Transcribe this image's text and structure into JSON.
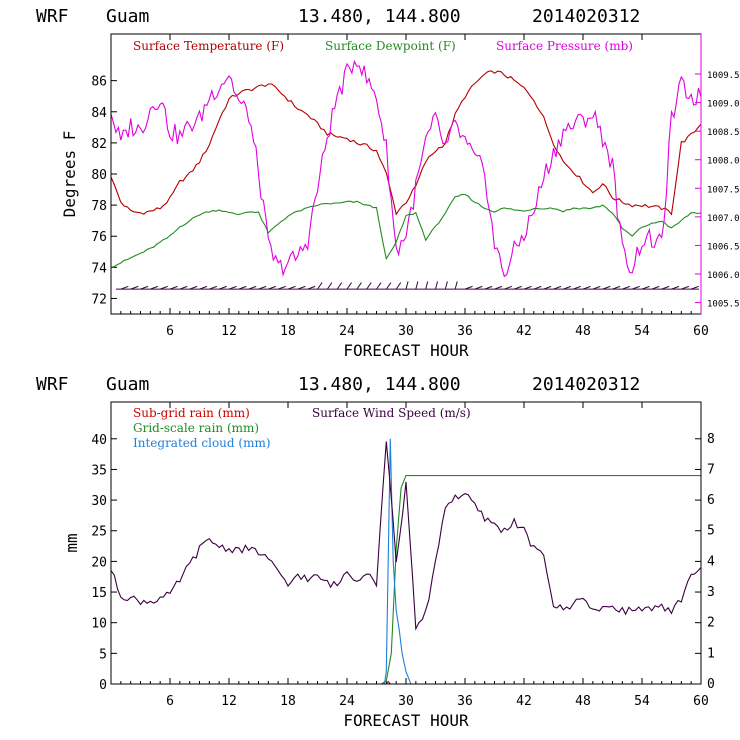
{
  "chart_data": [
    {
      "type": "line",
      "title": "WRF  Guam        13.480, 144.800  2014020312",
      "title_parts": {
        "model": "WRF",
        "location": "Guam",
        "coords": "13.480, 144.800",
        "run": "2014020312"
      },
      "xlabel": "FORECAST HOUR",
      "ylabel": "Degrees F",
      "xlim": [
        0,
        60
      ],
      "ylim": [
        71,
        89
      ],
      "x_ticks": [
        6,
        12,
        18,
        24,
        30,
        36,
        42,
        48,
        54,
        60
      ],
      "y_ticks": [
        72,
        74,
        76,
        78,
        80,
        82,
        84,
        86
      ],
      "y2_ticks": [
        "1005.5",
        "1006.0",
        "1006.5",
        "1007.0",
        "1007.5",
        "1008.0",
        "1008.5",
        "1009.0",
        "1009.5"
      ],
      "y2lim": [
        1005.3,
        1010.2
      ],
      "colors": {
        "temperature": "#b30000",
        "dewpoint": "#228b22",
        "pressure": "#e000e0",
        "wind": "#3a0040"
      },
      "series": [
        {
          "name": "Surface Temperature (F)",
          "color": "#b30000",
          "axis": "left",
          "x": [
            0,
            1,
            2,
            3,
            4,
            5,
            6,
            7,
            8,
            9,
            10,
            11,
            12,
            13,
            14,
            15,
            16,
            17,
            18,
            19,
            20,
            21,
            22,
            23,
            24,
            25,
            26,
            27,
            28,
            29,
            30,
            31,
            32,
            33,
            34,
            35,
            36,
            37,
            38,
            39,
            40,
            41,
            42,
            43,
            44,
            45,
            46,
            47,
            48,
            49,
            50,
            51,
            52,
            53,
            54,
            55,
            56,
            57,
            58,
            59,
            60
          ],
          "values": [
            79.8,
            78.2,
            77.6,
            77.5,
            77.6,
            77.8,
            78.4,
            79.5,
            80.0,
            80.8,
            81.9,
            83.5,
            84.8,
            85.2,
            85.4,
            85.6,
            85.8,
            85.4,
            84.8,
            84.2,
            83.8,
            83.2,
            82.6,
            82.4,
            82.3,
            82.0,
            81.8,
            81.5,
            80.0,
            77.5,
            78.2,
            79.2,
            80.8,
            81.5,
            82.0,
            83.8,
            85.0,
            85.8,
            86.4,
            86.6,
            86.4,
            86.0,
            85.5,
            84.8,
            83.6,
            82.0,
            80.8,
            80.2,
            79.5,
            78.8,
            79.4,
            78.5,
            78.2,
            78.0,
            78.0,
            77.9,
            77.8,
            77.5,
            82.0,
            82.5,
            83.2
          ]
        },
        {
          "name": "Surface Dewpoint (F)",
          "color": "#228b22",
          "axis": "left",
          "x": [
            0,
            1,
            2,
            3,
            4,
            5,
            6,
            7,
            8,
            9,
            10,
            11,
            12,
            13,
            14,
            15,
            16,
            17,
            18,
            19,
            20,
            21,
            22,
            23,
            24,
            25,
            26,
            27,
            28,
            29,
            30,
            31,
            32,
            33,
            34,
            35,
            36,
            37,
            38,
            39,
            40,
            41,
            42,
            43,
            44,
            45,
            46,
            47,
            48,
            49,
            50,
            51,
            52,
            53,
            54,
            55,
            56,
            57,
            58,
            59,
            60
          ],
          "values": [
            74.0,
            74.3,
            74.6,
            74.9,
            75.2,
            75.6,
            76.0,
            76.6,
            77.0,
            77.4,
            77.6,
            77.7,
            77.5,
            77.4,
            77.6,
            77.5,
            76.2,
            76.8,
            77.3,
            77.6,
            77.8,
            78.0,
            78.1,
            78.1,
            78.2,
            78.2,
            78.0,
            77.8,
            74.5,
            75.6,
            77.3,
            77.5,
            75.8,
            76.6,
            77.5,
            78.5,
            78.7,
            78.2,
            77.8,
            77.6,
            77.8,
            77.7,
            77.6,
            77.8,
            77.8,
            77.8,
            77.6,
            77.8,
            77.8,
            77.8,
            78.0,
            77.5,
            76.5,
            76.0,
            76.6,
            76.8,
            77.0,
            76.5,
            77.0,
            77.5,
            77.5
          ]
        },
        {
          "name": "Surface Pressure (mb)",
          "color": "#e000e0",
          "axis": "right",
          "x": [
            0,
            1,
            2,
            3,
            4,
            5,
            6,
            7,
            8,
            9,
            10,
            11,
            12,
            13,
            14,
            15,
            16,
            17,
            18,
            19,
            20,
            21,
            22,
            23,
            24,
            25,
            26,
            27,
            28,
            29,
            30,
            31,
            32,
            33,
            34,
            35,
            36,
            37,
            38,
            39,
            40,
            41,
            42,
            43,
            44,
            45,
            46,
            47,
            48,
            49,
            50,
            51,
            52,
            53,
            54,
            55,
            56,
            57,
            58,
            59,
            60
          ],
          "values": [
            1008.8,
            1008.3,
            1008.6,
            1008.5,
            1008.9,
            1009.1,
            1008.5,
            1008.4,
            1008.6,
            1008.7,
            1009.1,
            1009.3,
            1009.5,
            1009.0,
            1008.8,
            1007.8,
            1006.5,
            1006.1,
            1006.2,
            1006.3,
            1006.6,
            1007.5,
            1008.4,
            1009.1,
            1009.5,
            1009.8,
            1009.4,
            1009.1,
            1008.2,
            1006.4,
            1006.7,
            1007.5,
            1008.3,
            1008.7,
            1008.2,
            1008.6,
            1008.3,
            1008.0,
            1007.8,
            1006.5,
            1006.0,
            1006.4,
            1006.7,
            1007.1,
            1007.7,
            1008.1,
            1008.5,
            1008.6,
            1008.7,
            1008.8,
            1008.4,
            1007.9,
            1006.4,
            1006.1,
            1006.6,
            1006.6,
            1006.5,
            1008.7,
            1009.3,
            1009.1,
            1009.1
          ]
        },
        {
          "name": "Surface Wind (barbs)",
          "color": "#3a0040",
          "axis": "left",
          "level": 72.6,
          "x": [
            0,
            60
          ],
          "values": [
            72.6,
            72.6
          ]
        }
      ],
      "legend": [
        "Surface Temperature (F)",
        "Surface Dewpoint (F)",
        "Surface Pressure (mb)"
      ],
      "legend_position": "top-left"
    },
    {
      "type": "line",
      "title": "WRF  Guam        13.480, 144.800  2014020312",
      "title_parts": {
        "model": "WRF",
        "location": "Guam",
        "coords": "13.480, 144.800",
        "run": "2014020312"
      },
      "xlabel": "FORECAST HOUR",
      "ylabel": "mm",
      "xlim": [
        0,
        60
      ],
      "ylim": [
        0,
        46
      ],
      "y2lim": [
        0,
        9.2
      ],
      "x_ticks": [
        6,
        12,
        18,
        24,
        30,
        36,
        42,
        48,
        54,
        60
      ],
      "y_ticks": [
        0,
        5,
        10,
        15,
        20,
        25,
        30,
        35,
        40
      ],
      "y2_ticks": [
        0,
        1,
        2,
        3,
        4,
        5,
        6,
        7,
        8
      ],
      "colors": {
        "subgrid": "#cc0000",
        "gridscale": "#228b22",
        "cloud": "#1e7fd6",
        "wind": "#3a0040"
      },
      "series": [
        {
          "name": "Sub-grid rain (mm)",
          "color": "#cc0000",
          "axis": "left",
          "x": [
            0,
            27.5,
            28,
            28.2,
            28.4,
            60
          ],
          "values": [
            0,
            0,
            0,
            0.4,
            0,
            0
          ]
        },
        {
          "name": "Grid-scale rain (mm)",
          "color": "#228b22",
          "axis": "left",
          "x": [
            0,
            27.5,
            28.0,
            28.5,
            29.0,
            29.5,
            30.0,
            60
          ],
          "values": [
            0,
            0,
            0.5,
            5,
            22,
            32,
            34,
            34
          ]
        },
        {
          "name": "Integrated cloud (mm)",
          "color": "#1e7fd6",
          "axis": "left",
          "x": [
            0,
            27.8,
            28.0,
            28.4,
            28.7,
            29.0,
            29.3,
            29.6,
            30.0,
            30.5,
            60
          ],
          "values": [
            0,
            0,
            2,
            40,
            20,
            12,
            9,
            5,
            2,
            0,
            0
          ]
        },
        {
          "name": "Surface Wind Speed (m/s)",
          "color": "#3a0040",
          "axis": "right",
          "x": [
            0,
            1,
            2,
            3,
            4,
            5,
            6,
            7,
            8,
            9,
            10,
            11,
            12,
            13,
            14,
            15,
            16,
            17,
            18,
            19,
            20,
            21,
            22,
            23,
            24,
            25,
            26,
            27,
            28,
            29,
            30,
            31,
            32,
            33,
            34,
            35,
            36,
            37,
            38,
            39,
            40,
            41,
            42,
            43,
            44,
            45,
            46,
            47,
            48,
            49,
            50,
            51,
            52,
            53,
            54,
            55,
            56,
            57,
            58,
            59,
            60
          ],
          "values": [
            3.7,
            2.9,
            2.8,
            2.7,
            2.7,
            2.8,
            2.9,
            3.4,
            3.9,
            4.4,
            4.7,
            4.5,
            4.4,
            4.4,
            4.4,
            4.3,
            4.1,
            3.6,
            3.2,
            3.6,
            3.4,
            3.5,
            3.3,
            3.2,
            3.7,
            3.4,
            3.7,
            3.3,
            8.0,
            4.0,
            6.5,
            1.8,
            2.3,
            4.0,
            5.8,
            6.1,
            6.2,
            5.8,
            5.4,
            5.2,
            5.0,
            5.3,
            5.0,
            4.4,
            4.2,
            2.6,
            2.4,
            2.6,
            2.9,
            2.4,
            2.4,
            2.6,
            2.4,
            2.4,
            2.5,
            2.4,
            2.5,
            2.3,
            2.8,
            3.6,
            3.8
          ]
        }
      ],
      "legend": [
        "Sub-grid rain (mm)",
        "Surface Wind Speed (m/s)",
        "Grid-scale rain (mm)",
        "Integrated cloud (mm)"
      ],
      "legend_position": "top-left"
    }
  ]
}
